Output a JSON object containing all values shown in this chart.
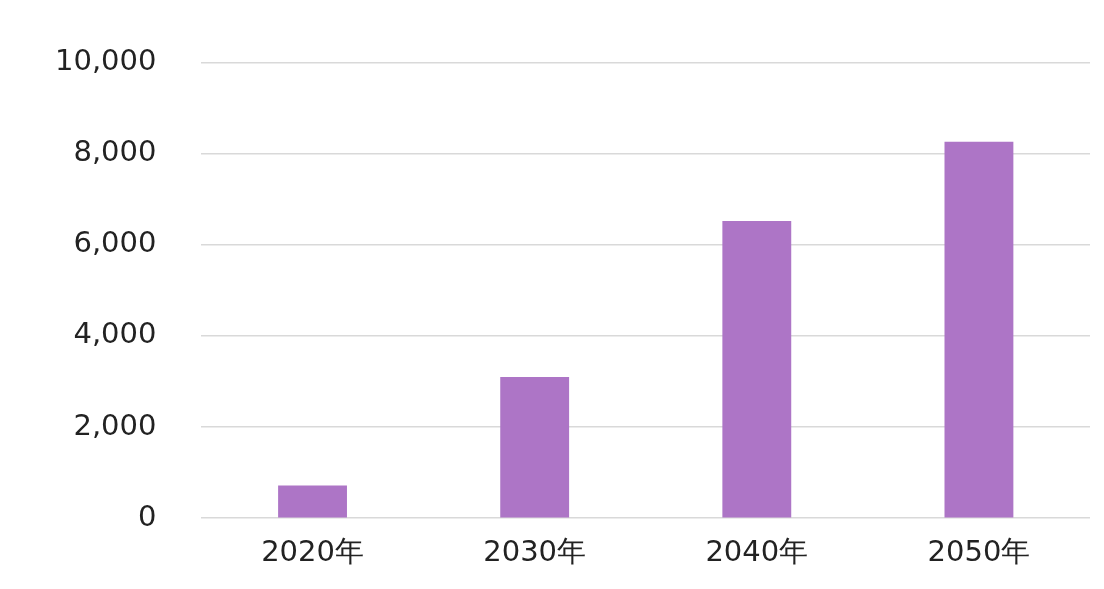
{
  "chart_data": {
    "type": "bar",
    "categories": [
      "2020年",
      "2030年",
      "2040年",
      "2050年"
    ],
    "values": [
      720,
      3100,
      6520,
      8260
    ],
    "color": "#ad75c6",
    "ylim": [
      0,
      10000
    ],
    "yticks": [
      {
        "value": 0,
        "label": "0"
      },
      {
        "value": 2000,
        "label": "2,000"
      },
      {
        "value": 4000,
        "label": "4,000"
      },
      {
        "value": 6000,
        "label": "6,000"
      },
      {
        "value": 8000,
        "label": "8,000"
      },
      {
        "value": 10000,
        "label": "10,000"
      }
    ],
    "grid": "y",
    "legend": false
  }
}
